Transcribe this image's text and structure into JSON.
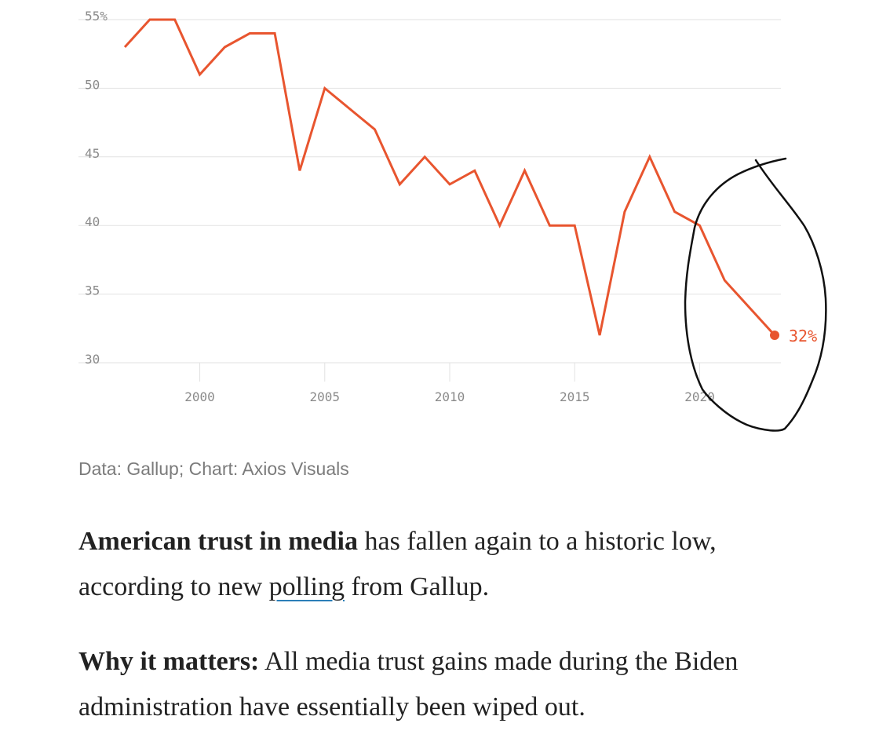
{
  "chart_data": {
    "type": "line",
    "x": [
      1997,
      1998,
      1999,
      2000,
      2001,
      2002,
      2003,
      2004,
      2005,
      2006,
      2007,
      2008,
      2009,
      2010,
      2011,
      2012,
      2013,
      2014,
      2015,
      2016,
      2017,
      2018,
      2019,
      2020,
      2021,
      2022,
      2023
    ],
    "series": [
      {
        "values": [
          53,
          55,
          55,
          51,
          53,
          54,
          54,
          44,
          50,
          48.5,
          47,
          43,
          45,
          43,
          44,
          40,
          44,
          40,
          40,
          32,
          41,
          45,
          41,
          40,
          36,
          34,
          32
        ],
        "color": "#e8552f"
      }
    ],
    "end_label": "32%",
    "yticks": [
      "55%",
      "50",
      "45",
      "40",
      "35",
      "30"
    ],
    "ytick_values": [
      55,
      50,
      45,
      40,
      35,
      30
    ],
    "xticks": [
      "2000",
      "2005",
      "2010",
      "2015",
      "2020"
    ],
    "xtick_values": [
      2000,
      2005,
      2010,
      2015,
      2020
    ],
    "xlim": [
      1997,
      2023
    ],
    "ylim": [
      30,
      55
    ],
    "grid": true
  },
  "annotation": {
    "type": "hand-drawn circle",
    "color": "#111111"
  },
  "source": "Data: Gallup; Chart: Axios Visuals",
  "article": {
    "p1_bold": "American trust in media",
    "p1_pre": " has fallen again to a historic low,",
    "p1_mid": "according to new ",
    "p1_link": "polling",
    "p1_post": " from Gallup.",
    "p2_bold": "Why it matters:",
    "p2_text": " All media trust gains made during the Biden administration have essentially been wiped out."
  }
}
